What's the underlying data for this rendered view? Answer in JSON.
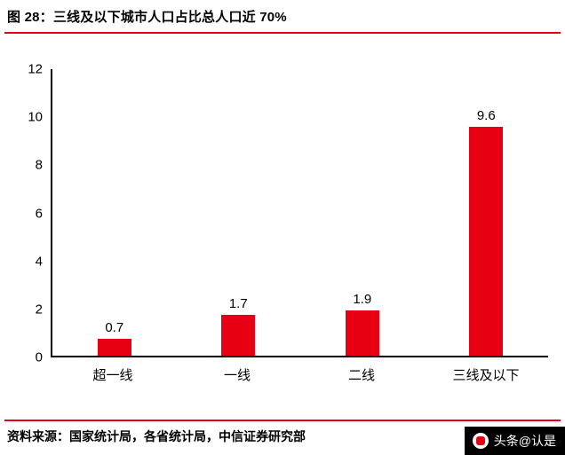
{
  "header": {
    "title": "图 28：三线及以下城市人口占比总人口近 70%"
  },
  "footer": {
    "source": "资料来源：国家统计局，各省统计局，中信证券研究部",
    "watermark": "头条@认是"
  },
  "colors": {
    "accent_red": "#e60012",
    "bar_red": "#e60012",
    "axis_black": "#000000",
    "watermark_bg": "#000000",
    "watermark_text": "#ffffff"
  },
  "chart_data": {
    "type": "bar",
    "title": "三线及以下城市人口占比总人口近 70%",
    "categories": [
      "超一线",
      "一线",
      "二线",
      "三线及以下"
    ],
    "values": [
      0.7,
      1.7,
      1.9,
      9.6
    ],
    "value_labels": [
      "0.7",
      "1.7",
      "1.9",
      "9.6"
    ],
    "xlabel": "",
    "ylabel": "",
    "ylim": [
      0,
      12
    ],
    "yticks": [
      0,
      2,
      4,
      6,
      8,
      10,
      12
    ],
    "grid": false,
    "legend": false,
    "bar_color": "#e60012"
  }
}
